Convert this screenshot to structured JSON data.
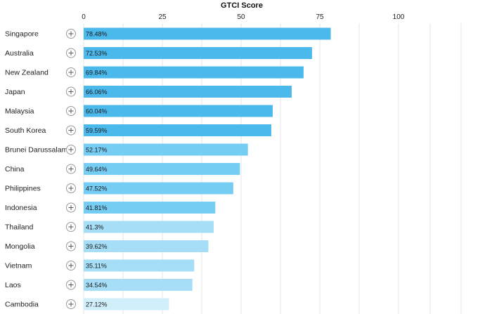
{
  "chart_data": {
    "type": "bar",
    "orientation": "horizontal",
    "title": "GTCI Score",
    "xlim": [
      0,
      100
    ],
    "xticks": [
      0,
      25,
      50,
      75,
      100
    ],
    "grid": true,
    "categories": [
      "Singapore",
      "Australia",
      "New Zealand",
      "Japan",
      "Malaysia",
      "South Korea",
      "Brunei Darussalam",
      "China",
      "Philippines",
      "Indonesia",
      "Thailand",
      "Mongolia",
      "Vietnam",
      "Laos",
      "Cambodia"
    ],
    "values": [
      78.48,
      72.53,
      69.84,
      66.06,
      60.04,
      59.59,
      52.17,
      49.64,
      47.52,
      41.81,
      41.3,
      39.62,
      35.11,
      34.54,
      27.12
    ],
    "value_labels": [
      "78.48%",
      "72.53%",
      "69.84%",
      "66.06%",
      "60.04%",
      "59.59%",
      "52.17%",
      "49.64%",
      "47.52%",
      "41.81%",
      "41.3%",
      "39.62%",
      "35.11%",
      "34.54%",
      "27.12%"
    ],
    "colors": {
      "tier1": "#4bb9ec",
      "tier2": "#76cdf3",
      "tier3": "#a6def7",
      "tier4": "#d1eefb",
      "grid": "#e6e6e6"
    },
    "bar_tiers": [
      1,
      1,
      1,
      1,
      1,
      1,
      2,
      2,
      2,
      2,
      3,
      3,
      3,
      3,
      4
    ],
    "row_icon": "plus-circle-icon"
  }
}
